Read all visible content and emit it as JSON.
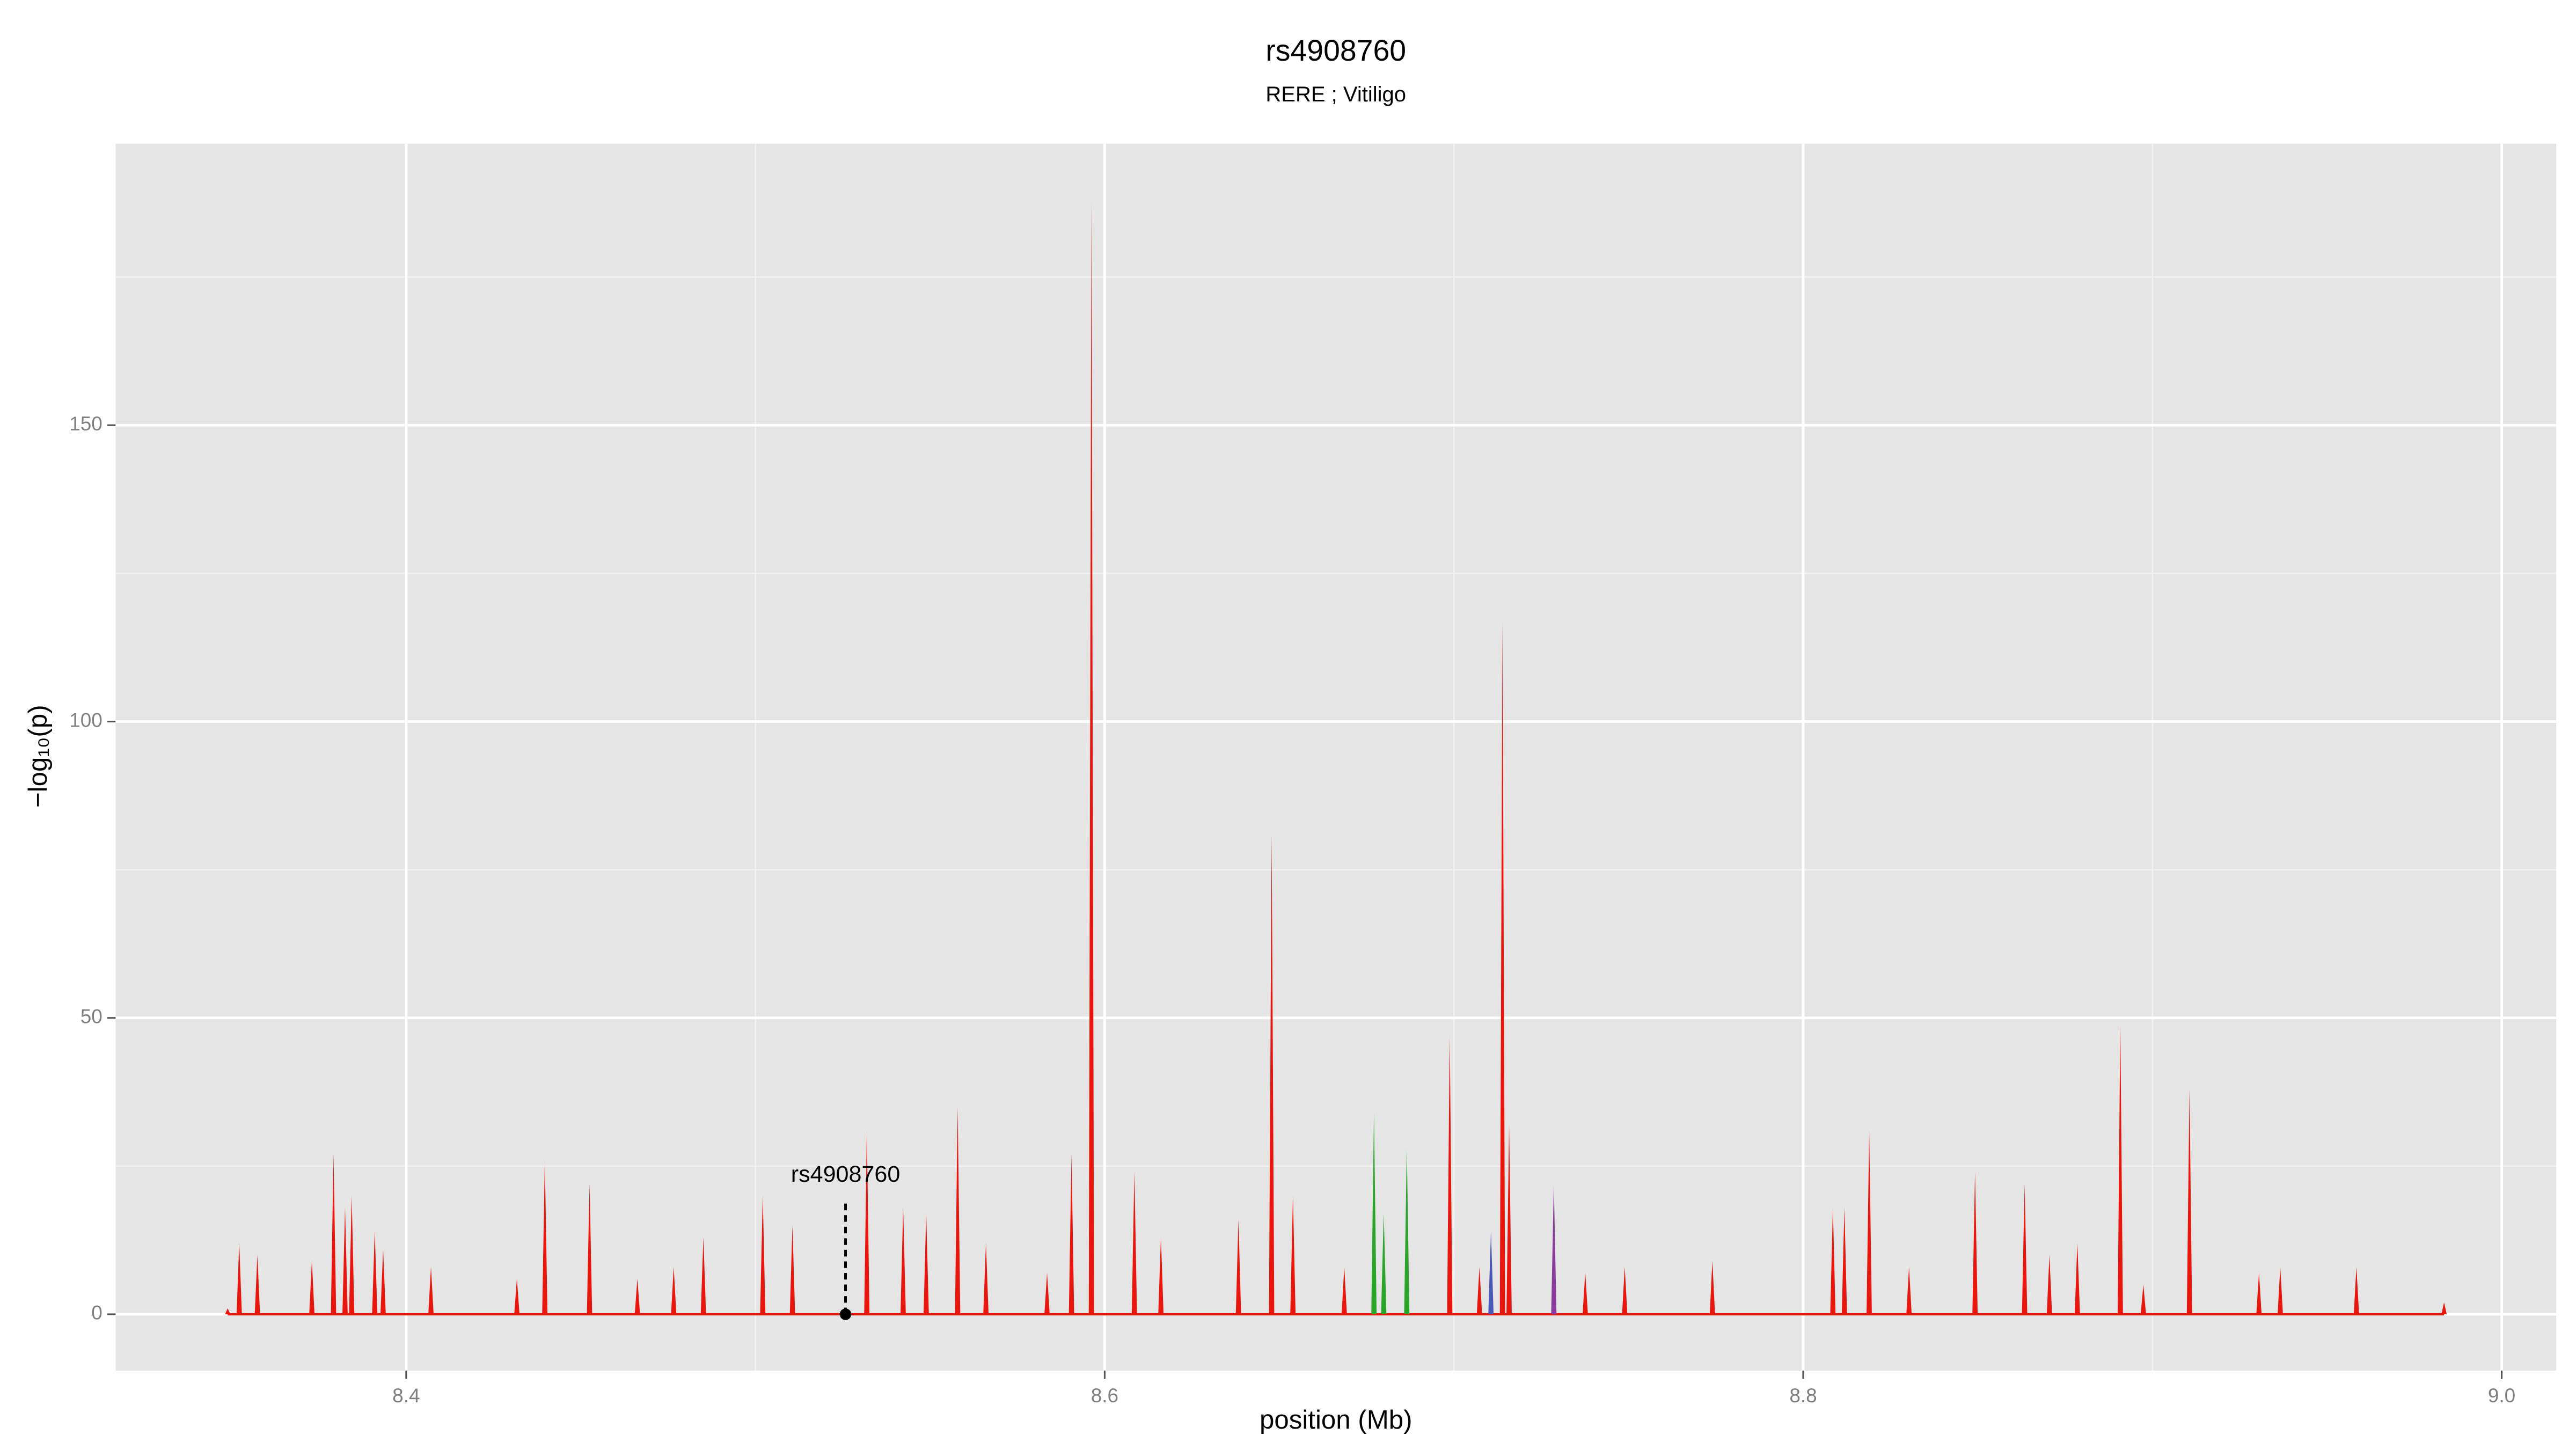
{
  "chart_data": {
    "type": "spike",
    "title": "rs4908760",
    "subtitle": "RERE ; Vitiligo",
    "xlabel": "position (Mb)",
    "ylabel": "−log₁₀(p)",
    "xlim": [
      8.3168,
      9.0156
    ],
    "xticks": [
      8.4,
      8.6,
      8.8,
      {
        "value": 9.0,
        "label": "9.0"
      }
    ],
    "ylim": [
      -9.5,
      197.5
    ],
    "yticks": [
      0,
      50,
      100,
      150
    ],
    "grid": true,
    "series": [
      {
        "color": "#e8160c",
        "x": [
          8.3489,
          8.3522,
          8.3574,
          8.373,
          8.3792,
          8.3825,
          8.3844,
          8.391,
          8.3934,
          8.4071,
          8.4317,
          8.4397,
          8.4525,
          8.4662,
          8.4766,
          8.4851,
          8.5021,
          8.5106,
          8.5319,
          8.5423,
          8.5489,
          8.5579,
          8.566,
          8.5835,
          8.5905,
          8.5962,
          8.6085,
          8.6161,
          8.6383,
          8.6478,
          8.6539,
          8.6686,
          8.6988,
          8.7073,
          8.7139,
          8.7158,
          8.7376,
          8.7489,
          8.774,
          8.8085,
          8.8118,
          8.8189,
          8.8303,
          8.8492,
          8.8634,
          8.8705,
          8.8785,
          8.8908,
          8.8974,
          8.9106,
          8.9305,
          8.9366,
          8.9584,
          8.9835
        ],
        "values": [
          1,
          12,
          10,
          9,
          27,
          18,
          20,
          14,
          11,
          8,
          6,
          26,
          22,
          6,
          8,
          13,
          20,
          15,
          31,
          18,
          17,
          35,
          12,
          7,
          27,
          188,
          24,
          13,
          16,
          81,
          20,
          8,
          47,
          8,
          117,
          32,
          7,
          8,
          9,
          18,
          18,
          31,
          8,
          24,
          22,
          10,
          12,
          49,
          5,
          38,
          7,
          8,
          8,
          2
        ]
      },
      {
        "color": "#2aa52a",
        "x": [
          8.6771,
          8.6799,
          8.6865
        ],
        "values": [
          34,
          17,
          28
        ]
      },
      {
        "color": "#4a58b8",
        "x": [
          8.7106
        ],
        "values": [
          14
        ]
      },
      {
        "color": "#8a3c9c",
        "x": [
          8.7286
        ],
        "values": [
          22
        ]
      }
    ],
    "annotation": {
      "text": "rs4908760",
      "x": 8.5258,
      "y": 0
    }
  }
}
